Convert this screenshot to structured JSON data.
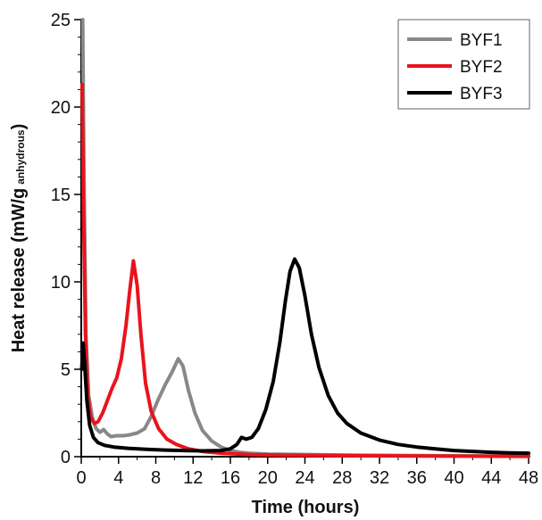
{
  "chart_data": {
    "type": "line",
    "title": "",
    "xlabel": "Time (hours)",
    "ylabel": {
      "main": "Heat release (mW/g",
      "subscript": "anhydrous",
      "close": ")"
    },
    "xlim": [
      0,
      48
    ],
    "ylim": [
      0,
      25
    ],
    "xticks": [
      0,
      4,
      8,
      12,
      16,
      20,
      24,
      28,
      32,
      36,
      40,
      44,
      48
    ],
    "yticks": [
      0,
      5,
      10,
      15,
      20,
      25
    ],
    "legend_position": "top-right",
    "grid": false,
    "series": [
      {
        "name": "BYF1",
        "color": "#888888",
        "points": [
          [
            0.15,
            25
          ],
          [
            0.3,
            16
          ],
          [
            0.5,
            7
          ],
          [
            0.8,
            3.5
          ],
          [
            1.2,
            2.2
          ],
          [
            1.6,
            1.6
          ],
          [
            2.0,
            1.4
          ],
          [
            2.4,
            1.55
          ],
          [
            2.8,
            1.3
          ],
          [
            3.2,
            1.15
          ],
          [
            3.8,
            1.2
          ],
          [
            4.5,
            1.2
          ],
          [
            5.2,
            1.25
          ],
          [
            6.0,
            1.35
          ],
          [
            6.8,
            1.6
          ],
          [
            7.5,
            2.3
          ],
          [
            8.2,
            3.2
          ],
          [
            9.0,
            4.1
          ],
          [
            9.8,
            4.9
          ],
          [
            10.4,
            5.6
          ],
          [
            10.9,
            5.2
          ],
          [
            11.5,
            3.8
          ],
          [
            12.2,
            2.5
          ],
          [
            13.0,
            1.5
          ],
          [
            14.0,
            0.9
          ],
          [
            15.0,
            0.55
          ],
          [
            16.0,
            0.35
          ],
          [
            17.0,
            0.25
          ],
          [
            18.0,
            0.2
          ],
          [
            20.0,
            0.15
          ],
          [
            24.0,
            0.12
          ],
          [
            30.0,
            0.08
          ],
          [
            40.0,
            0.05
          ],
          [
            48.0,
            0.03
          ]
        ]
      },
      {
        "name": "BYF2",
        "color": "#e8141c",
        "points": [
          [
            0.1,
            21.3
          ],
          [
            0.25,
            14
          ],
          [
            0.45,
            7
          ],
          [
            0.7,
            3.5
          ],
          [
            1.0,
            2.3
          ],
          [
            1.4,
            1.9
          ],
          [
            1.8,
            2.0
          ],
          [
            2.3,
            2.5
          ],
          [
            2.8,
            3.2
          ],
          [
            3.3,
            3.9
          ],
          [
            3.8,
            4.5
          ],
          [
            4.3,
            5.6
          ],
          [
            4.8,
            7.5
          ],
          [
            5.2,
            9.5
          ],
          [
            5.6,
            11.2
          ],
          [
            6.0,
            9.8
          ],
          [
            6.4,
            7.0
          ],
          [
            6.9,
            4.2
          ],
          [
            7.5,
            2.6
          ],
          [
            8.3,
            1.6
          ],
          [
            9.2,
            1.0
          ],
          [
            10.2,
            0.7
          ],
          [
            11.5,
            0.45
          ],
          [
            13.0,
            0.3
          ],
          [
            15.0,
            0.2
          ],
          [
            18.0,
            0.12
          ],
          [
            22.0,
            0.08
          ],
          [
            30.0,
            0.05
          ],
          [
            40.0,
            0.03
          ],
          [
            48.0,
            0.02
          ]
        ]
      },
      {
        "name": "BYF3",
        "color": "#000000",
        "points": [
          [
            0.05,
            5.0
          ],
          [
            0.2,
            6.5
          ],
          [
            0.35,
            5.4
          ],
          [
            0.6,
            3.2
          ],
          [
            0.9,
            1.8
          ],
          [
            1.3,
            1.1
          ],
          [
            1.8,
            0.8
          ],
          [
            2.5,
            0.65
          ],
          [
            3.5,
            0.55
          ],
          [
            5.0,
            0.48
          ],
          [
            7.0,
            0.42
          ],
          [
            9.0,
            0.38
          ],
          [
            11.0,
            0.35
          ],
          [
            13.0,
            0.33
          ],
          [
            15.0,
            0.35
          ],
          [
            16.0,
            0.45
          ],
          [
            16.7,
            0.7
          ],
          [
            17.2,
            1.1
          ],
          [
            17.7,
            1.0
          ],
          [
            18.3,
            1.1
          ],
          [
            19.0,
            1.6
          ],
          [
            19.8,
            2.7
          ],
          [
            20.6,
            4.3
          ],
          [
            21.3,
            6.5
          ],
          [
            21.9,
            8.9
          ],
          [
            22.4,
            10.6
          ],
          [
            22.9,
            11.3
          ],
          [
            23.4,
            10.8
          ],
          [
            24.0,
            9.2
          ],
          [
            24.7,
            7.0
          ],
          [
            25.5,
            5.1
          ],
          [
            26.5,
            3.5
          ],
          [
            27.5,
            2.5
          ],
          [
            28.5,
            1.9
          ],
          [
            30.0,
            1.35
          ],
          [
            32.0,
            0.95
          ],
          [
            34.0,
            0.7
          ],
          [
            36.0,
            0.55
          ],
          [
            38.0,
            0.45
          ],
          [
            40.0,
            0.35
          ],
          [
            42.0,
            0.3
          ],
          [
            44.0,
            0.25
          ],
          [
            46.0,
            0.22
          ],
          [
            48.0,
            0.2
          ]
        ]
      }
    ]
  }
}
